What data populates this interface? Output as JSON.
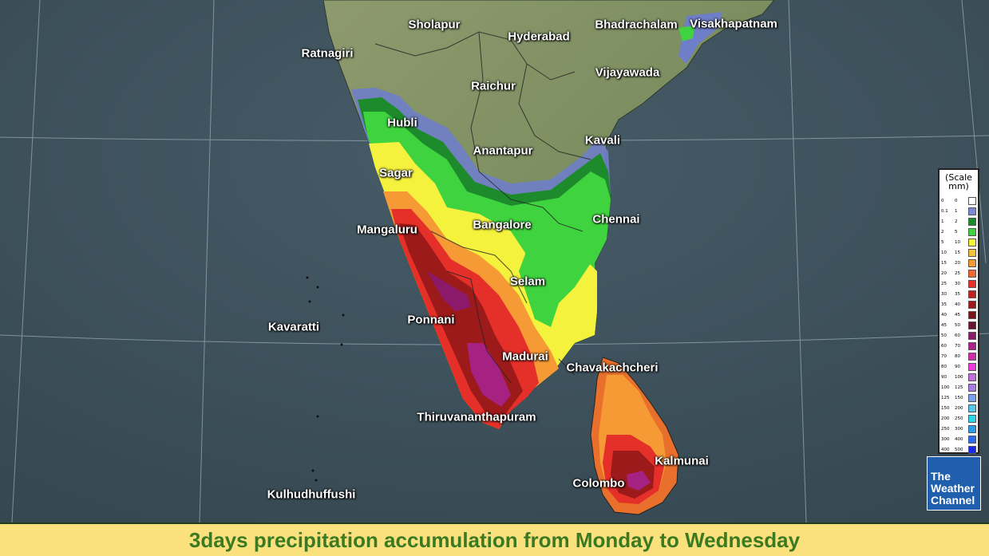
{
  "title": "3days precipitation accumulation from Monday to Wednesday",
  "cities": [
    {
      "name": "Sholapur",
      "id": "sholapur"
    },
    {
      "name": "Hyderabad",
      "id": "hyderabad"
    },
    {
      "name": "Bhadrachalam",
      "id": "bhadrachalam"
    },
    {
      "name": "Visakhapatnam",
      "id": "visakhapatnam"
    },
    {
      "name": "Ratnagiri",
      "id": "ratnagiri"
    },
    {
      "name": "Raichur",
      "id": "raichur"
    },
    {
      "name": "Vijayawada",
      "id": "vijayawada"
    },
    {
      "name": "Hubli",
      "id": "hubli"
    },
    {
      "name": "Anantapur",
      "id": "anantapur"
    },
    {
      "name": "Kavali",
      "id": "kavali"
    },
    {
      "name": "Sagar",
      "id": "sagar"
    },
    {
      "name": "Chennai",
      "id": "chennai"
    },
    {
      "name": "Mangaluru",
      "id": "mangaluru"
    },
    {
      "name": "Bangalore",
      "id": "bangalore"
    },
    {
      "name": "Selam",
      "id": "selam"
    },
    {
      "name": "Kavaratti",
      "id": "kavaratti"
    },
    {
      "name": "Ponnani",
      "id": "ponnani"
    },
    {
      "name": "Madurai",
      "id": "madurai"
    },
    {
      "name": "Chavakachcheri",
      "id": "chavakachcheri"
    },
    {
      "name": "Thiruvananthapuram",
      "id": "thiruvananthapuram"
    },
    {
      "name": "Kalmunai",
      "id": "kalmunai"
    },
    {
      "name": "Colombo",
      "id": "colombo"
    },
    {
      "name": "Kulhudhuffushi",
      "id": "kulhudhuffushi"
    }
  ],
  "legend": {
    "title": "(Scale mm)",
    "rows": [
      {
        "from": "0",
        "to": "0",
        "color": "#ffffff"
      },
      {
        "from": "0.1",
        "to": "1",
        "color": "#7a8ad6"
      },
      {
        "from": "1",
        "to": "2",
        "color": "#1a8a2a"
      },
      {
        "from": "2",
        "to": "5",
        "color": "#3fd33f"
      },
      {
        "from": "5",
        "to": "10",
        "color": "#f6f63c"
      },
      {
        "from": "10",
        "to": "15",
        "color": "#f7c23a"
      },
      {
        "from": "15",
        "to": "20",
        "color": "#f59a35"
      },
      {
        "from": "20",
        "to": "25",
        "color": "#f2672e"
      },
      {
        "from": "25",
        "to": "30",
        "color": "#e8302a"
      },
      {
        "from": "30",
        "to": "35",
        "color": "#c61f1f"
      },
      {
        "from": "35",
        "to": "40",
        "color": "#9e1a1a"
      },
      {
        "from": "40",
        "to": "45",
        "color": "#7a1414"
      },
      {
        "from": "45",
        "to": "50",
        "color": "#6e1030"
      },
      {
        "from": "50",
        "to": "60",
        "color": "#8c1a6a"
      },
      {
        "from": "60",
        "to": "70",
        "color": "#b0208c"
      },
      {
        "from": "70",
        "to": "80",
        "color": "#d42ab0"
      },
      {
        "from": "80",
        "to": "90",
        "color": "#ee3ad8"
      },
      {
        "from": "90",
        "to": "100",
        "color": "#c86ae0"
      },
      {
        "from": "100",
        "to": "125",
        "color": "#a87ae8"
      },
      {
        "from": "125",
        "to": "150",
        "color": "#7aa0f0"
      },
      {
        "from": "150",
        "to": "200",
        "color": "#52c8f0"
      },
      {
        "from": "200",
        "to": "250",
        "color": "#2ad8f0"
      },
      {
        "from": "250",
        "to": "300",
        "color": "#2a9cf0"
      },
      {
        "from": "300",
        "to": "400",
        "color": "#2a6af0"
      },
      {
        "from": "400",
        "to": "500",
        "color": "#1a2ae8"
      }
    ]
  },
  "logo": {
    "line1": "The",
    "line2": "Weather",
    "line3": "Channel"
  }
}
